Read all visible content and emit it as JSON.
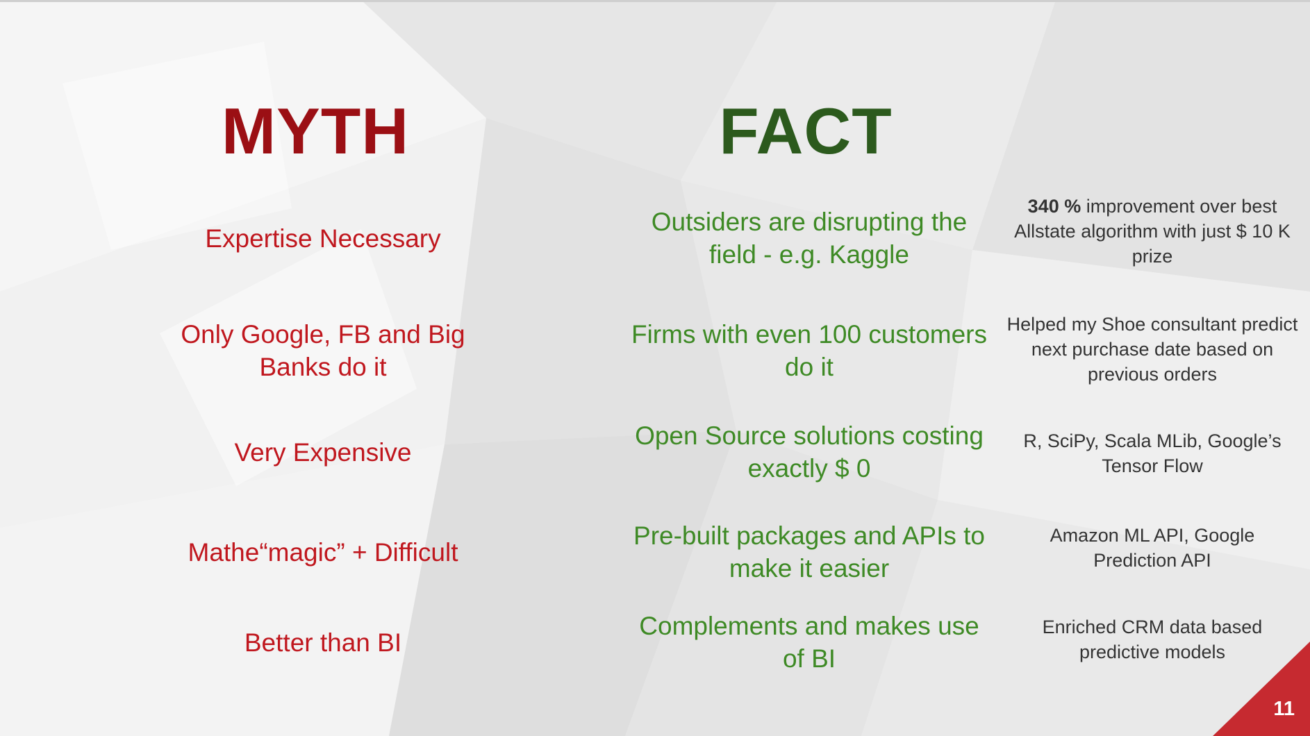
{
  "headings": {
    "myth": "MYTH",
    "fact": "FACT"
  },
  "rows": [
    {
      "myth": "Expertise Necessary",
      "fact": "Outsiders are disrupting the field - e.g. Kaggle",
      "example_bold": "340 %",
      "example": " improvement over best Allstate algorithm with just $ 10 K prize"
    },
    {
      "myth": "Only Google, FB and Big Banks do it",
      "fact": "Firms with even 100 customers do it",
      "example_bold": "",
      "example": "Helped my Shoe consultant predict next purchase date based on previous orders"
    },
    {
      "myth": "Very Expensive",
      "fact": "Open Source solutions costing exactly $ 0",
      "example_bold": "",
      "example": "R, SciPy, Scala MLib, Google’s Tensor Flow"
    },
    {
      "myth": "Mathe“magic” + Difficult",
      "fact": "Pre-built packages and APIs to make it easier",
      "example_bold": "",
      "example": "Amazon ML API, Google Prediction API"
    },
    {
      "myth": "Better than BI",
      "fact": "Complements and makes use of BI",
      "example_bold": "",
      "example": "Enriched CRM data based predictive models"
    }
  ],
  "page_number": "11",
  "colors": {
    "myth_heading": "#9b0f14",
    "myth_text": "#c0171e",
    "fact_heading": "#2c5a1d",
    "fact_text": "#3e8a25",
    "example_text": "#333333",
    "corner_accent": "#c62a30"
  }
}
